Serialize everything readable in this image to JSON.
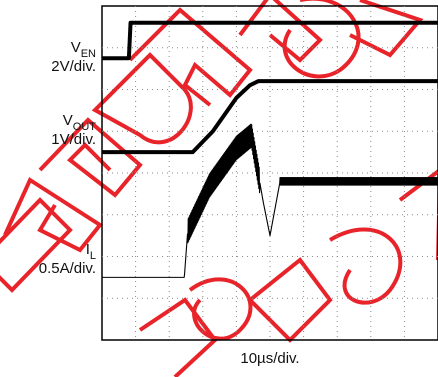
{
  "chart_data": {
    "type": "line",
    "timebase": "10µs/div.",
    "grid": true,
    "x_divisions": 10,
    "y_divisions": 8,
    "series": [
      {
        "name": "VEN",
        "label_main": "V",
        "label_sub": "EN",
        "scale": "2V/div.",
        "x_div": [
          0,
          0.8,
          0.85,
          10
        ],
        "y_div": [
          6.75,
          6.75,
          7.6,
          7.6
        ]
      },
      {
        "name": "VOUT",
        "label_main": "V",
        "label_sub": "OUT",
        "scale": "1V/div.",
        "x_div": [
          0,
          2.7,
          3.3,
          4.0,
          4.4,
          4.65,
          10
        ],
        "y_div": [
          4.5,
          4.5,
          5.0,
          5.8,
          6.1,
          6.2,
          6.2
        ]
      },
      {
        "name": "IL",
        "label_main": "I",
        "label_sub": "L",
        "scale": "0.5A/div.",
        "x_div": [
          0,
          2.45,
          2.55,
          3.2,
          4.0,
          4.45,
          4.8,
          5.0,
          5.3,
          10
        ],
        "y_div": [
          1.5,
          1.5,
          2.6,
          3.7,
          4.6,
          4.9,
          3.3,
          2.5,
          3.8,
          3.8
        ]
      }
    ]
  },
  "colors": {
    "trace": "#000000",
    "grid": "#8a8a8a",
    "watermark": "#e8242a"
  }
}
